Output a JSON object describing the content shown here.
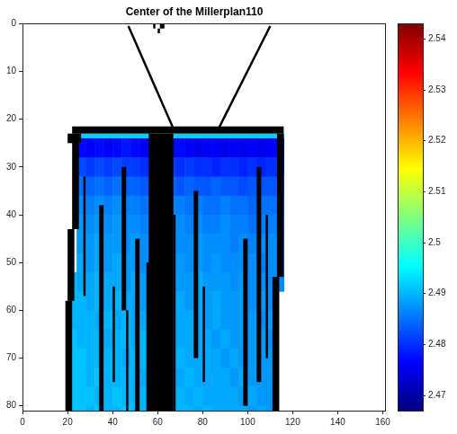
{
  "chart_data": {
    "type": "heatmap",
    "title": "Center of the Millerplan110",
    "xlim": [
      0,
      161
    ],
    "ylim": [
      81,
      0
    ],
    "xticks": [
      0,
      20,
      40,
      60,
      80,
      100,
      120,
      140,
      160
    ],
    "yticks": [
      0,
      10,
      20,
      30,
      40,
      50,
      60,
      70,
      80
    ],
    "x_edges": [
      20,
      24,
      28,
      32,
      36,
      40,
      44,
      48,
      52,
      56,
      60,
      64,
      68,
      72,
      76,
      80,
      84,
      88,
      92,
      96,
      100,
      104,
      108,
      112,
      116
    ],
    "y_edges": [
      23,
      24,
      28,
      32,
      36,
      40,
      44,
      48,
      52,
      56,
      60,
      64,
      68,
      72,
      76,
      80,
      81
    ],
    "z": [
      [
        null,
        2.492,
        2.492,
        2.492,
        2.492,
        2.492,
        2.492,
        2.492,
        2.492,
        2.492,
        2.492,
        2.492,
        2.492,
        2.492,
        2.492,
        2.492,
        2.492,
        2.492,
        2.492,
        2.492,
        2.492,
        2.492,
        2.492,
        2.492
      ],
      [
        null,
        2.477,
        2.476,
        2.477,
        2.476,
        2.477,
        2.478,
        2.477,
        2.476,
        2.477,
        2.476,
        2.476,
        2.477,
        2.476,
        2.475,
        2.476,
        2.476,
        2.475,
        2.476,
        2.475,
        2.476,
        2.475,
        2.476,
        2.476
      ],
      [
        null,
        2.482,
        2.481,
        2.482,
        2.481,
        2.482,
        2.481,
        2.481,
        2.48,
        2.481,
        2.48,
        2.481,
        2.48,
        2.481,
        2.48,
        2.48,
        2.479,
        2.48,
        2.48,
        2.479,
        2.48,
        2.479,
        2.48,
        2.48
      ],
      [
        null,
        2.485,
        2.484,
        2.485,
        2.484,
        2.485,
        2.484,
        2.484,
        2.483,
        2.484,
        2.483,
        2.484,
        2.483,
        2.484,
        2.483,
        2.483,
        2.484,
        2.483,
        2.483,
        2.482,
        2.483,
        2.483,
        2.483,
        2.483
      ],
      [
        null,
        2.487,
        2.486,
        2.487,
        2.486,
        2.487,
        2.486,
        2.486,
        2.485,
        2.486,
        2.485,
        2.486,
        2.486,
        2.485,
        2.486,
        2.485,
        2.485,
        2.486,
        2.485,
        2.485,
        2.484,
        2.485,
        2.485,
        2.485
      ],
      [
        null,
        2.488,
        2.487,
        2.488,
        2.487,
        2.488,
        2.487,
        2.487,
        2.486,
        2.487,
        2.486,
        2.487,
        2.487,
        2.486,
        2.487,
        2.486,
        2.486,
        2.487,
        2.486,
        2.486,
        2.485,
        2.486,
        2.486,
        2.486
      ],
      [
        null,
        2.488,
        2.488,
        2.489,
        2.488,
        2.488,
        2.487,
        2.488,
        2.487,
        2.488,
        2.487,
        2.488,
        2.487,
        2.487,
        2.488,
        2.487,
        2.487,
        2.487,
        2.486,
        2.487,
        2.486,
        2.487,
        2.487,
        2.487
      ],
      [
        null,
        2.489,
        2.488,
        2.489,
        2.488,
        2.489,
        2.488,
        2.488,
        2.487,
        2.488,
        2.488,
        2.488,
        2.488,
        2.487,
        2.488,
        2.487,
        2.488,
        2.487,
        2.487,
        2.487,
        2.487,
        2.486,
        2.487,
        2.487
      ],
      [
        2.49,
        2.489,
        2.489,
        2.49,
        2.489,
        2.489,
        2.488,
        2.489,
        2.488,
        2.489,
        2.488,
        2.489,
        2.488,
        2.488,
        2.489,
        2.488,
        2.488,
        2.488,
        2.487,
        2.488,
        2.487,
        2.487,
        2.487,
        2.487
      ],
      [
        2.49,
        2.49,
        2.489,
        2.49,
        2.489,
        2.49,
        2.489,
        2.489,
        2.488,
        2.489,
        2.489,
        2.489,
        2.489,
        2.488,
        2.489,
        2.488,
        2.489,
        2.488,
        2.488,
        2.488,
        2.487,
        2.488,
        2.487,
        null
      ],
      [
        2.49,
        2.49,
        2.49,
        2.489,
        2.49,
        2.489,
        2.49,
        2.489,
        2.489,
        2.489,
        2.489,
        2.49,
        2.489,
        2.489,
        2.489,
        2.488,
        2.489,
        2.488,
        2.488,
        2.488,
        2.488,
        2.487,
        2.488,
        null
      ],
      [
        2.491,
        2.49,
        2.49,
        2.49,
        2.489,
        2.49,
        2.49,
        2.489,
        2.49,
        2.489,
        2.489,
        2.49,
        2.489,
        2.489,
        2.489,
        2.489,
        2.488,
        2.489,
        2.488,
        2.488,
        2.488,
        2.488,
        2.487,
        null
      ],
      [
        2.491,
        2.491,
        2.49,
        2.49,
        2.49,
        2.49,
        2.489,
        2.49,
        2.49,
        2.489,
        2.49,
        2.49,
        2.49,
        2.489,
        2.489,
        2.489,
        2.489,
        2.488,
        2.489,
        2.488,
        2.488,
        2.488,
        2.488,
        null
      ],
      [
        2.491,
        2.491,
        2.49,
        2.491,
        2.49,
        2.49,
        2.49,
        2.49,
        2.489,
        2.49,
        2.49,
        2.49,
        2.489,
        2.49,
        2.489,
        2.489,
        2.489,
        2.489,
        2.488,
        2.489,
        2.488,
        2.488,
        2.488,
        null
      ],
      [
        2.491,
        2.491,
        2.491,
        2.49,
        2.49,
        2.491,
        2.49,
        2.49,
        2.49,
        2.49,
        2.49,
        2.49,
        2.49,
        2.489,
        2.49,
        2.489,
        2.489,
        2.489,
        2.489,
        2.488,
        2.489,
        2.488,
        2.488,
        null
      ],
      [
        2.491,
        2.491,
        2.49,
        2.491,
        2.49,
        2.49,
        2.491,
        2.49,
        2.49,
        2.49,
        2.49,
        2.49,
        2.49,
        2.49,
        2.489,
        2.49,
        2.489,
        2.489,
        2.489,
        2.489,
        2.488,
        2.489,
        2.488,
        null
      ]
    ],
    "colorbar": {
      "range": [
        2.467,
        2.543
      ],
      "ticks": [
        2.47,
        2.48,
        2.49,
        2.5,
        2.51,
        2.52,
        2.53,
        2.54
      ]
    },
    "masked": [
      [
        22,
        21.5,
        94,
        1.5
      ],
      [
        20,
        23,
        6,
        2
      ],
      [
        22,
        23,
        3,
        20
      ],
      [
        20,
        43,
        3,
        15
      ],
      [
        19,
        58,
        3,
        23
      ],
      [
        56,
        23,
        11,
        58
      ],
      [
        55,
        50,
        2,
        31
      ],
      [
        67,
        40,
        1,
        41
      ],
      [
        113,
        23,
        3,
        30
      ],
      [
        111,
        53,
        3,
        28
      ],
      [
        27,
        32,
        1,
        25
      ],
      [
        34,
        38,
        2,
        43
      ],
      [
        40,
        55,
        1,
        20
      ],
      [
        44,
        30,
        2,
        30
      ],
      [
        46,
        60,
        1,
        21
      ],
      [
        50,
        45,
        2,
        36
      ],
      [
        76,
        35,
        2,
        35
      ],
      [
        80,
        55,
        1,
        20
      ],
      [
        98,
        45,
        2,
        35
      ],
      [
        104,
        30,
        2,
        45
      ],
      [
        108,
        40,
        1,
        30
      ],
      [
        58,
        0,
        1,
        1
      ],
      [
        61,
        0,
        2,
        1
      ],
      [
        60,
        1,
        1,
        1
      ]
    ],
    "lines": [
      [
        [
          47,
          0.5
        ],
        [
          67,
          22
        ]
      ],
      [
        [
          110,
          0.5
        ],
        [
          87,
          22
        ]
      ]
    ]
  }
}
